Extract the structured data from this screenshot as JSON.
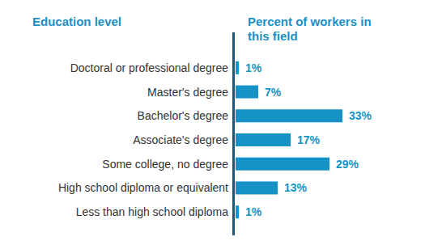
{
  "chart_data": {
    "type": "bar",
    "orientation": "horizontal",
    "y_label": "Education level",
    "x_label": "Percent of workers in this field",
    "categories": [
      "Doctoral or professional degree",
      "Master's degree",
      "Bachelor's degree",
      "Associate's degree",
      "Some college, no degree",
      "High school diploma or equivalent",
      "Less than high school diploma"
    ],
    "values": [
      1,
      7,
      33,
      17,
      29,
      13,
      1
    ],
    "value_labels": [
      "1%",
      "7%",
      "33%",
      "17%",
      "29%",
      "13%",
      "1%"
    ],
    "xlim": [
      0,
      33
    ],
    "color": "#1593c6",
    "data_labels": true,
    "tick_labels": "y",
    "grid": false
  }
}
